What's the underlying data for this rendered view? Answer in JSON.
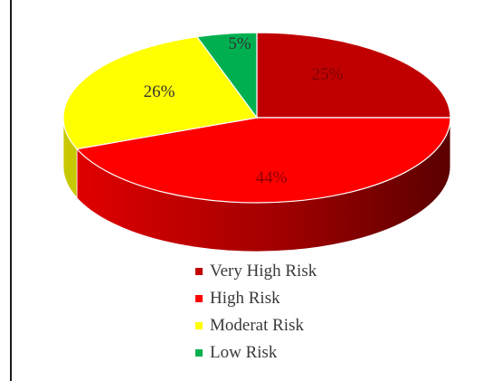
{
  "chart_data": {
    "type": "pie",
    "title": "",
    "slices": [
      {
        "label": "Very High Risk",
        "value": 25,
        "display": "25%",
        "color": "#c00000",
        "side_color": "#7a0000",
        "label_color": "#7f0000"
      },
      {
        "label": "High Risk",
        "value": 44,
        "display": "44%",
        "color": "#ff0000",
        "side_color": "#b00000",
        "label_color": "#8b0000"
      },
      {
        "label": "Moderat Risk",
        "value": 26,
        "display": "26%",
        "color": "#ffff00",
        "side_color": "#c8c800",
        "label_color": "#333333"
      },
      {
        "label": "Low Risk",
        "value": 5,
        "display": "5%",
        "color": "#00b050",
        "side_color": "#007a38",
        "label_color": "#333333"
      }
    ],
    "legend_position": "bottom"
  }
}
